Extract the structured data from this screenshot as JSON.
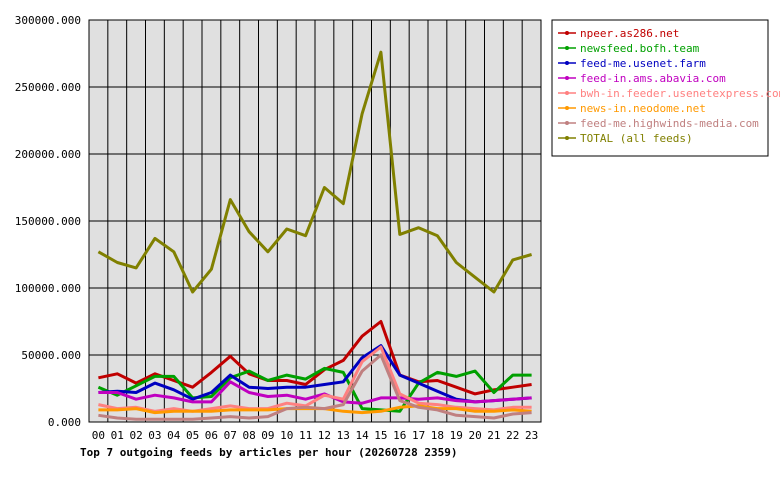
{
  "chart_data": {
    "type": "line",
    "title": "Top 7 outgoing feeds by articles per hour (20260728 2359)",
    "ylim": [
      0,
      300000
    ],
    "yticks": [
      "0.000",
      "50000.000",
      "100000.000",
      "150000.000",
      "200000.000",
      "250000.000",
      "300000.000"
    ],
    "ytick_values": [
      0,
      50000,
      100000,
      150000,
      200000,
      250000,
      300000
    ],
    "categories": [
      "00",
      "01",
      "02",
      "03",
      "04",
      "05",
      "06",
      "07",
      "08",
      "09",
      "10",
      "11",
      "12",
      "13",
      "14",
      "15",
      "16",
      "17",
      "18",
      "19",
      "20",
      "21",
      "22",
      "23"
    ],
    "grid": true,
    "legend_position": "top-right",
    "series": [
      {
        "name": "npeer.as286.net",
        "color": "#c00000",
        "values": [
          33000,
          36000,
          29000,
          36000,
          31000,
          26000,
          37000,
          49000,
          36000,
          31000,
          31000,
          28000,
          39000,
          46000,
          64000,
          75000,
          35000,
          30000,
          31000,
          26000,
          21000,
          24000,
          26000,
          28000
        ]
      },
      {
        "name": "newsfeed.bofh.team",
        "color": "#00a000",
        "values": [
          26000,
          20000,
          27000,
          34000,
          34000,
          18000,
          19000,
          33000,
          38000,
          31000,
          35000,
          32000,
          40000,
          37000,
          10000,
          9000,
          8000,
          29000,
          37000,
          34000,
          38000,
          22000,
          35000,
          35000
        ]
      },
      {
        "name": "feed-me.usenet.farm",
        "color": "#0000c0",
        "values": [
          22000,
          23000,
          22000,
          29000,
          24000,
          17000,
          22000,
          35000,
          26000,
          25000,
          26000,
          26000,
          28000,
          30000,
          48000,
          57000,
          35000,
          29000,
          23000,
          17000,
          15000,
          16000,
          17000,
          18000
        ]
      },
      {
        "name": "feed-in.ams.abavia.com",
        "color": "#c000c0",
        "values": [
          22000,
          22000,
          17000,
          20000,
          18000,
          15000,
          15000,
          30000,
          22000,
          19000,
          20000,
          17000,
          21000,
          15000,
          14000,
          18000,
          18000,
          17000,
          18000,
          16000,
          15000,
          16000,
          17000,
          18000
        ]
      },
      {
        "name": "bwh-in.feeder.usenetexpress.com",
        "color": "#ff8080",
        "values": [
          13000,
          10000,
          11000,
          8000,
          10000,
          8000,
          10000,
          12000,
          10000,
          10000,
          14000,
          12000,
          20000,
          17000,
          45000,
          56000,
          21000,
          14000,
          13000,
          11000,
          10000,
          9000,
          11000,
          11000
        ]
      },
      {
        "name": "news-in.neodome.net",
        "color": "#ff9900",
        "values": [
          9000,
          9000,
          10000,
          7000,
          8000,
          8000,
          8000,
          9000,
          9000,
          9000,
          10000,
          10000,
          10000,
          8000,
          7000,
          8000,
          11000,
          12000,
          10000,
          10000,
          8000,
          8000,
          9000,
          8000
        ]
      },
      {
        "name": "feed-me.highwinds-media.com",
        "color": "#c08080",
        "values": [
          5000,
          3000,
          2000,
          2000,
          2000,
          2000,
          3000,
          4000,
          3000,
          4000,
          10000,
          11000,
          10000,
          13000,
          38000,
          50000,
          16000,
          11000,
          9000,
          5000,
          4000,
          3000,
          6000,
          7000
        ]
      },
      {
        "name": "TOTAL (all feeds)",
        "color": "#808000",
        "values": [
          127000,
          119000,
          115000,
          137000,
          127000,
          97000,
          114000,
          166000,
          142000,
          127000,
          144000,
          139000,
          175000,
          163000,
          230000,
          276000,
          140000,
          145000,
          139000,
          119000,
          108000,
          97000,
          121000,
          125000
        ]
      }
    ]
  }
}
